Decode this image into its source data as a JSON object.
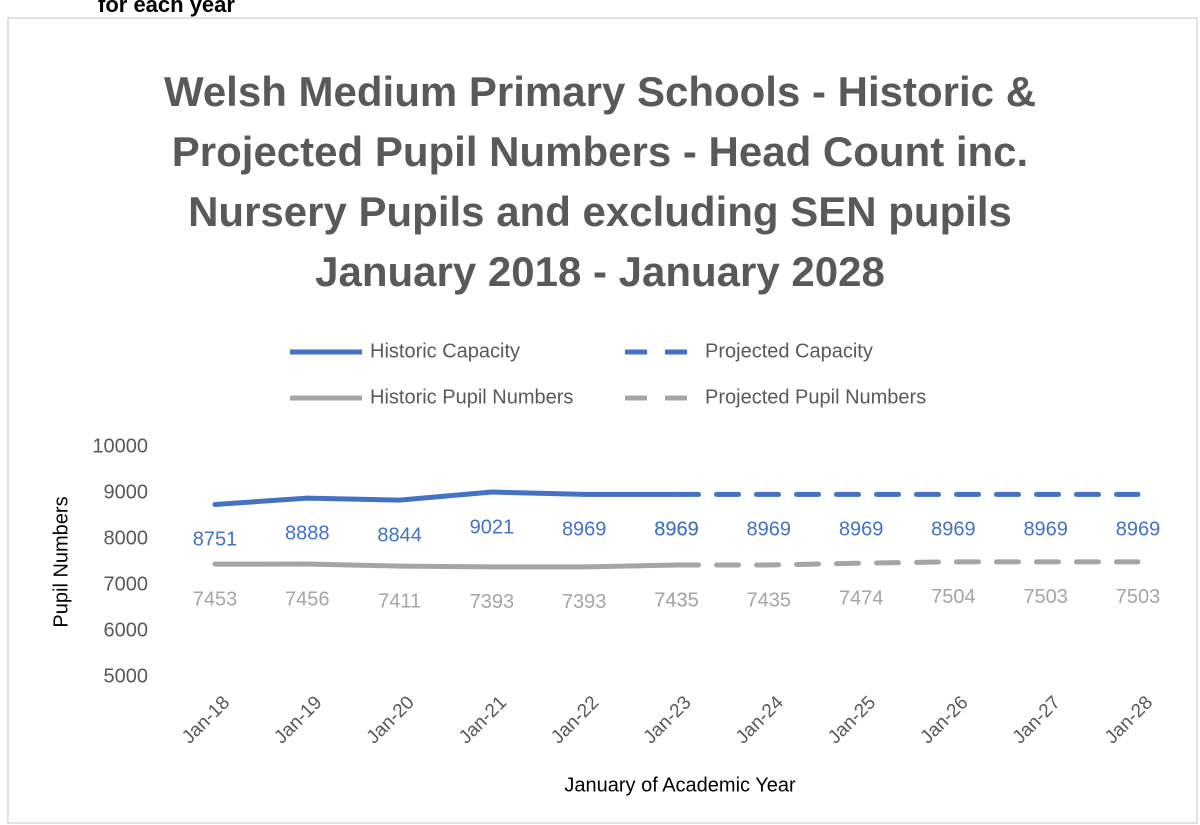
{
  "heading_fragment": "for each year",
  "chart_data": {
    "type": "line",
    "title": [
      "Welsh Medium Primary Schools - Historic &",
      "Projected Pupil Numbers - Head Count inc.",
      "Nursery Pupils and excluding SEN pupils",
      "January 2018 - January 2028"
    ],
    "x_label": "January of Academic Year",
    "y_label": "Pupil Numbers",
    "categories": [
      "Jan-18",
      "Jan-19",
      "Jan-20",
      "Jan-21",
      "Jan-22",
      "Jan-23",
      "Jan-24",
      "Jan-25",
      "Jan-26",
      "Jan-27",
      "Jan-28"
    ],
    "series": [
      {
        "name": "Historic Capacity",
        "color": "#4472c4",
        "style": "solid",
        "values": [
          8751,
          8888,
          8844,
          9021,
          8969,
          8969,
          null,
          null,
          null,
          null,
          null
        ]
      },
      {
        "name": "Projected Capacity",
        "color": "#4472c4",
        "style": "dashed",
        "values": [
          null,
          null,
          null,
          null,
          null,
          8969,
          8969,
          8969,
          8969,
          8969,
          8969
        ]
      },
      {
        "name": "Historic Pupil Numbers",
        "color": "#a5a5a5",
        "style": "solid",
        "values": [
          7453,
          7456,
          7411,
          7393,
          7393,
          7435,
          null,
          null,
          null,
          null,
          null
        ]
      },
      {
        "name": "Projected Pupil Numbers",
        "color": "#a5a5a5",
        "style": "dashed",
        "values": [
          null,
          null,
          null,
          null,
          null,
          7435,
          7435,
          7474,
          7504,
          7503,
          7503
        ]
      }
    ],
    "ylim": [
      5000,
      10000
    ],
    "yticks": [
      5000,
      6000,
      7000,
      8000,
      9000,
      10000
    ],
    "grid": false,
    "legend": "top",
    "data_labels": true
  }
}
